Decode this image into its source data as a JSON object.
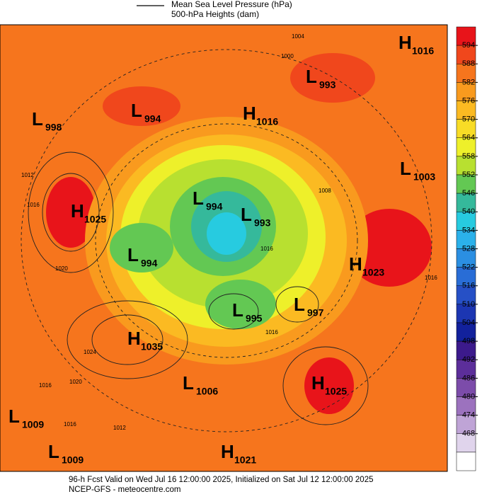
{
  "header": {
    "line1": "Mean Sea Level Pressure (hPa)",
    "line2": "500-hPa Heights (dam)"
  },
  "footer": {
    "line1": "96-h Fcst Valid on Wed Jul 16 12:00:00 2025, Initialized on Sat Jul 12 12:00:00 2025",
    "line2": "NCEP-GFS  - meteocentre.com"
  },
  "centers": [
    {
      "type": "L",
      "value": 998
    },
    {
      "type": "L",
      "value": 994
    },
    {
      "type": "H",
      "value": 1016
    },
    {
      "type": "L",
      "value": 993
    },
    {
      "type": "H",
      "value": 1016
    },
    {
      "type": "L",
      "value": 1003
    },
    {
      "type": "H",
      "value": 1025
    },
    {
      "type": "L",
      "value": 994
    },
    {
      "type": "L",
      "value": 993
    },
    {
      "type": "L",
      "value": 994
    },
    {
      "type": "H",
      "value": 1023
    },
    {
      "type": "L",
      "value": 995
    },
    {
      "type": "L",
      "value": 997
    },
    {
      "type": "H",
      "value": 1035
    },
    {
      "type": "H",
      "value": 1025
    },
    {
      "type": "L",
      "value": 1006
    },
    {
      "type": "L",
      "value": 1009
    },
    {
      "type": "L",
      "value": 1009
    },
    {
      "type": "H",
      "value": 1021
    }
  ],
  "isobar_labels": [
    1004,
    1000,
    1012,
    1016,
    1020,
    1024,
    1016,
    1020,
    1016,
    1012,
    1016,
    1008,
    1016,
    1016
  ],
  "colorbar": {
    "ticks": [
      594,
      588,
      582,
      576,
      570,
      564,
      558,
      552,
      546,
      540,
      534,
      528,
      522,
      516,
      510,
      504,
      498,
      492,
      486,
      480,
      474,
      468
    ],
    "colors": [
      "#e8141a",
      "#f0471c",
      "#f6751d",
      "#f99a1e",
      "#fbba22",
      "#f8dc26",
      "#eef02a",
      "#b8e030",
      "#63c853",
      "#35b99b",
      "#27cbe0",
      "#2bb1ea",
      "#2b8fe2",
      "#296dd6",
      "#2650c6",
      "#1c36b2",
      "#12219c",
      "#3c1a8c",
      "#5c2e9a",
      "#7c4caa",
      "#9c72be",
      "#bfa4d6",
      "#e0d4ec",
      "#ffffff"
    ]
  }
}
